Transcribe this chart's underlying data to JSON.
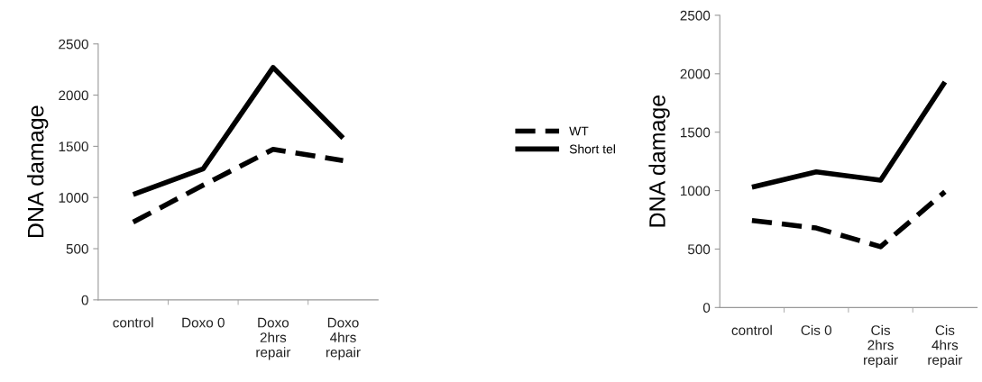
{
  "chart_data": [
    {
      "type": "line",
      "ylabel": "DNA damage",
      "categories": [
        "control",
        "Doxo 0",
        "Doxo\n2hrs\nrepair",
        "Doxo\n4hrs\nrepair"
      ],
      "ylim": [
        0,
        2500
      ],
      "yticks": [
        0,
        500,
        1000,
        1500,
        2000,
        2500
      ],
      "grid": false,
      "legend": "right",
      "marker": "none",
      "series": [
        {
          "name": "WT",
          "color": "#000000",
          "line_style": "dashed",
          "values": [
            760,
            1120,
            1470,
            1360
          ]
        },
        {
          "name": "Short tel",
          "color": "#000000",
          "line_style": "solid",
          "values": [
            1030,
            1280,
            2270,
            1580
          ]
        }
      ]
    },
    {
      "type": "line",
      "ylabel": "DNA damage",
      "categories": [
        "control",
        "Cis 0",
        "Cis\n2hrs\nrepair",
        "Cis\n4hrs\nrepair"
      ],
      "ylim": [
        0,
        2500
      ],
      "yticks": [
        0,
        500,
        1000,
        1500,
        2000,
        2500
      ],
      "grid": false,
      "legend": false,
      "marker": "none",
      "series": [
        {
          "color": "#000000",
          "line_style": "dashed",
          "values": [
            745,
            680,
            520,
            990
          ]
        },
        {
          "color": "#000000",
          "line_style": "solid",
          "values": [
            1030,
            1160,
            1090,
            1930
          ]
        }
      ]
    }
  ]
}
